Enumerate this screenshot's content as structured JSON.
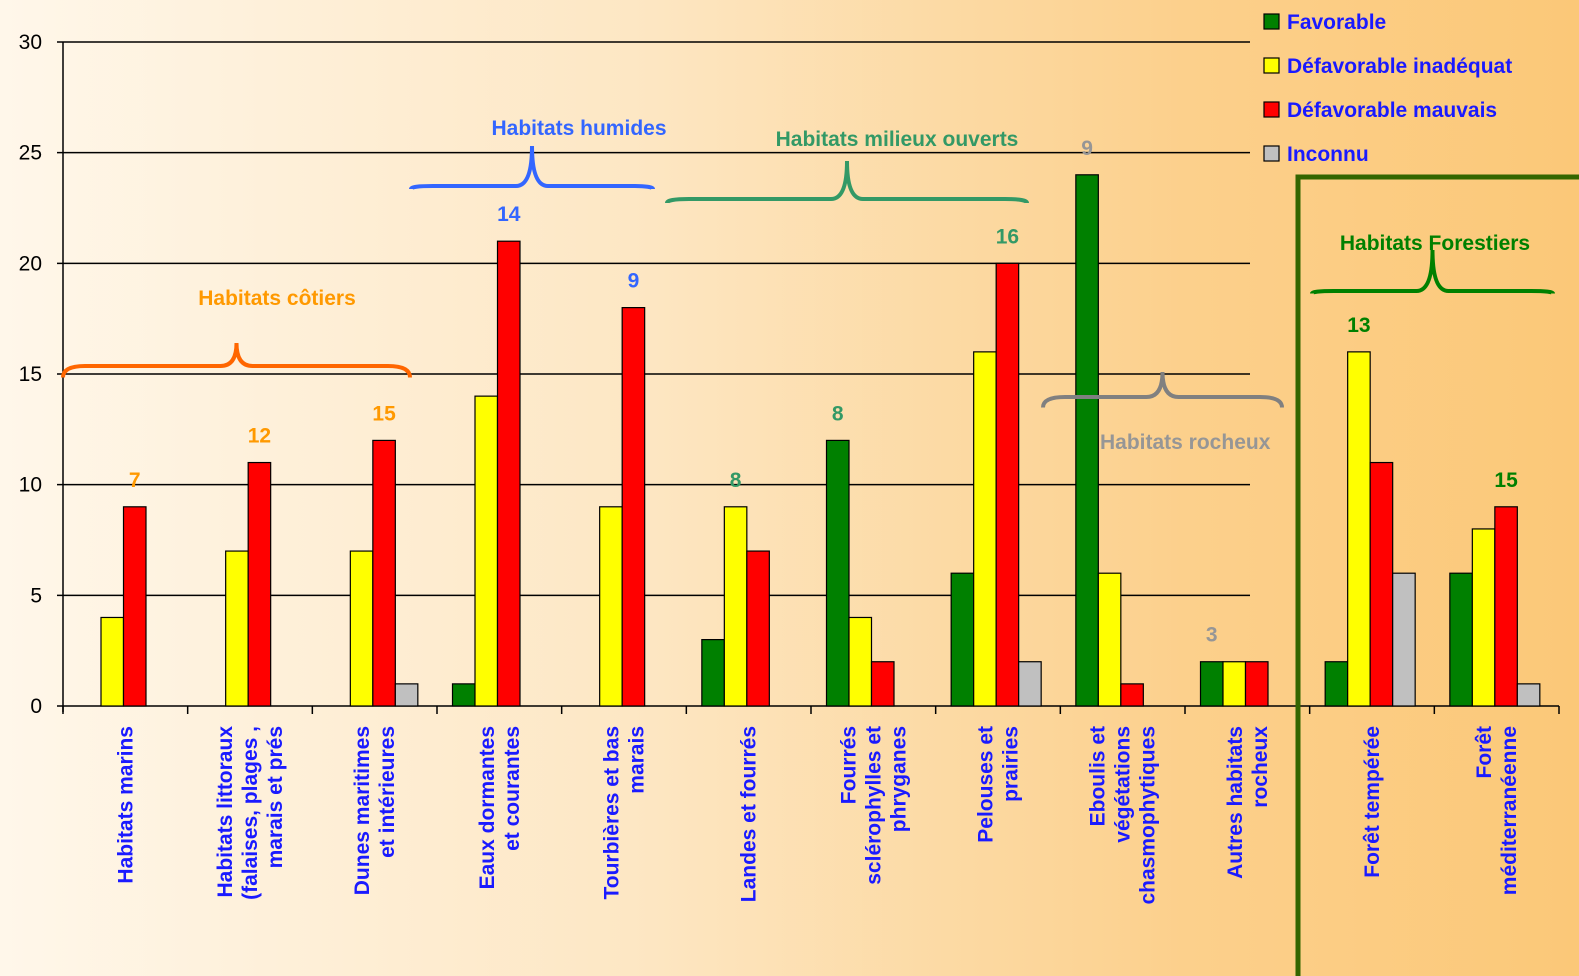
{
  "chart_data": {
    "type": "bar",
    "ylim": [
      0,
      30
    ],
    "yticks": [
      0,
      5,
      10,
      15,
      20,
      25,
      30
    ],
    "grid": true,
    "legend_position": "top-right",
    "categories": [
      [
        "Habitats marins"
      ],
      [
        "Habitats littoraux",
        "(falaises, plages ,",
        "marais et prés"
      ],
      [
        "Dunes maritimes",
        "et intérieures"
      ],
      [
        "Eaux dormantes",
        "et courantes"
      ],
      [
        "Tourbières et bas",
        "marais"
      ],
      [
        "Landes et fourrés"
      ],
      [
        "Fourrés",
        "sclérophylles et",
        "phryganes"
      ],
      [
        "Pelouses et",
        "prairies"
      ],
      [
        "Eboulis et",
        "végétations",
        "chasmophytiques"
      ],
      [
        "Autres habitats",
        "rocheux"
      ],
      [
        "Forêt tempérée"
      ],
      [
        "Forêt",
        "méditerranéenne"
      ]
    ],
    "series": [
      {
        "name": "Favorable",
        "color": "#008000",
        "values": [
          0,
          0,
          0,
          1,
          0,
          3,
          12,
          6,
          24,
          2,
          2,
          6
        ]
      },
      {
        "name": "Défavorable inadéquat",
        "color": "#ffff00",
        "values": [
          4,
          7,
          7,
          14,
          9,
          9,
          4,
          16,
          6,
          2,
          16,
          8
        ]
      },
      {
        "name": "Défavorable mauvais",
        "color": "#ff0000",
        "values": [
          9,
          11,
          12,
          21,
          18,
          7,
          2,
          20,
          1,
          2,
          11,
          9
        ]
      },
      {
        "name": "Inconnu",
        "color": "#c0c0c0",
        "values": [
          0,
          0,
          1,
          0,
          0,
          0,
          0,
          2,
          0,
          0,
          6,
          1
        ]
      }
    ],
    "counts": [
      {
        "category_index": 0,
        "value": 7,
        "color": "#ff9900"
      },
      {
        "category_index": 1,
        "value": 12,
        "color": "#ff9900"
      },
      {
        "category_index": 2,
        "value": 15,
        "color": "#ff9900"
      },
      {
        "category_index": 3,
        "value": 14,
        "color": "#3366ff"
      },
      {
        "category_index": 4,
        "value": 9,
        "color": "#3366ff"
      },
      {
        "category_index": 5,
        "value": 8,
        "color": "#339966"
      },
      {
        "category_index": 6,
        "value": 8,
        "color": "#339966"
      },
      {
        "category_index": 7,
        "value": 16,
        "color": "#339966"
      },
      {
        "category_index": 8,
        "value": 9,
        "color": "#969696"
      },
      {
        "category_index": 9,
        "value": 3,
        "color": "#969696"
      },
      {
        "category_index": 10,
        "value": 13,
        "color": "#008000"
      },
      {
        "category_index": 11,
        "value": 15,
        "color": "#008000"
      }
    ],
    "groups": [
      {
        "label": "Habitats côtiers",
        "color": "#ff9900",
        "brace_color": "#ff6600",
        "from": 0,
        "to": 2
      },
      {
        "label": "Habitats humides",
        "color": "#3366ff",
        "brace_color": "#3366ff",
        "from": 3,
        "to": 4
      },
      {
        "label": "Habitats milieux ouverts",
        "color": "#339966",
        "brace_color": "#339966",
        "from": 5,
        "to": 7
      },
      {
        "label": "Habitats rocheux",
        "color": "#969696",
        "brace_color": "#808080",
        "from": 8,
        "to": 9
      },
      {
        "label": "Habitats Forestiers",
        "color": "#008000",
        "brace_color": "#008000",
        "from": 10,
        "to": 11
      }
    ],
    "forest_box_color": "#336600"
  }
}
